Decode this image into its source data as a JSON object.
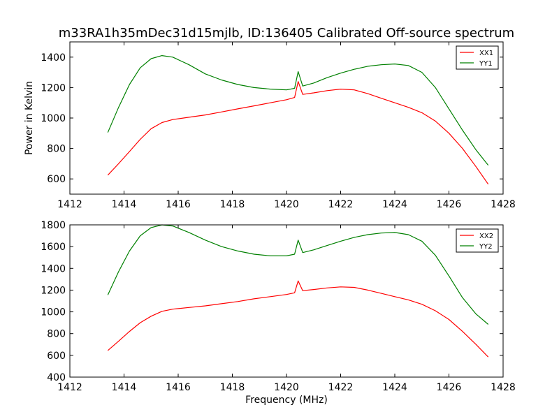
{
  "chart_data": [
    {
      "type": "line",
      "title": "m33RA1h35mDec31d15mjlb, ID:136405 Calibrated Off-source spectrum",
      "xlabel": "",
      "ylabel": "Power in Kelvin",
      "xlim": [
        1412,
        1428
      ],
      "ylim": [
        500,
        1500
      ],
      "xticks": [
        1412,
        1414,
        1416,
        1418,
        1420,
        1422,
        1424,
        1426,
        1428
      ],
      "yticks": [
        600,
        800,
        1000,
        1200,
        1400
      ],
      "legend": "top-right",
      "series": [
        {
          "name": "XX1",
          "color": "#ff0000",
          "x": [
            1413.4,
            1413.8,
            1414.2,
            1414.6,
            1415.0,
            1415.4,
            1415.8,
            1416.4,
            1417.0,
            1417.6,
            1418.2,
            1418.8,
            1419.4,
            1420.0,
            1420.3,
            1420.43,
            1420.6,
            1421.0,
            1421.5,
            1422.0,
            1422.5,
            1423.0,
            1423.5,
            1424.0,
            1424.5,
            1425.0,
            1425.5,
            1426.0,
            1426.5,
            1427.0,
            1427.45
          ],
          "y": [
            625,
            700,
            780,
            860,
            930,
            970,
            990,
            1005,
            1020,
            1040,
            1060,
            1080,
            1100,
            1120,
            1135,
            1240,
            1155,
            1165,
            1180,
            1190,
            1185,
            1160,
            1130,
            1100,
            1070,
            1035,
            980,
            900,
            800,
            680,
            565
          ]
        },
        {
          "name": "YY1",
          "color": "#008000",
          "x": [
            1413.4,
            1413.8,
            1414.2,
            1414.6,
            1415.0,
            1415.4,
            1415.8,
            1416.4,
            1417.0,
            1417.6,
            1418.2,
            1418.8,
            1419.4,
            1420.0,
            1420.3,
            1420.43,
            1420.6,
            1421.0,
            1421.5,
            1422.0,
            1422.5,
            1423.0,
            1423.5,
            1424.0,
            1424.5,
            1425.0,
            1425.5,
            1426.0,
            1426.5,
            1427.0,
            1427.45
          ],
          "y": [
            905,
            1070,
            1220,
            1330,
            1390,
            1410,
            1400,
            1350,
            1290,
            1250,
            1220,
            1200,
            1190,
            1185,
            1195,
            1305,
            1210,
            1230,
            1265,
            1295,
            1320,
            1340,
            1350,
            1355,
            1345,
            1300,
            1200,
            1060,
            920,
            790,
            690
          ]
        }
      ]
    },
    {
      "type": "line",
      "title": "",
      "xlabel": "Frequency (MHz)",
      "ylabel": "",
      "xlim": [
        1412,
        1428
      ],
      "ylim": [
        400,
        1800
      ],
      "xticks": [
        1412,
        1414,
        1416,
        1418,
        1420,
        1422,
        1424,
        1426,
        1428
      ],
      "yticks": [
        400,
        600,
        800,
        1000,
        1200,
        1400,
        1600,
        1800
      ],
      "legend": "top-right",
      "series": [
        {
          "name": "XX2",
          "color": "#ff0000",
          "x": [
            1413.4,
            1413.8,
            1414.2,
            1414.6,
            1415.0,
            1415.4,
            1415.8,
            1416.4,
            1417.0,
            1417.6,
            1418.2,
            1418.8,
            1419.4,
            1420.0,
            1420.3,
            1420.43,
            1420.6,
            1421.0,
            1421.5,
            1422.0,
            1422.5,
            1423.0,
            1423.5,
            1424.0,
            1424.5,
            1425.0,
            1425.5,
            1426.0,
            1426.5,
            1427.0,
            1427.45
          ],
          "y": [
            645,
            730,
            820,
            900,
            960,
            1005,
            1025,
            1040,
            1055,
            1075,
            1095,
            1120,
            1140,
            1160,
            1175,
            1285,
            1195,
            1205,
            1220,
            1230,
            1225,
            1200,
            1170,
            1140,
            1110,
            1070,
            1010,
            930,
            820,
            700,
            585
          ]
        },
        {
          "name": "YY2",
          "color": "#008000",
          "x": [
            1413.4,
            1413.8,
            1414.2,
            1414.6,
            1415.0,
            1415.4,
            1415.8,
            1416.4,
            1417.0,
            1417.6,
            1418.2,
            1418.8,
            1419.4,
            1420.0,
            1420.3,
            1420.43,
            1420.6,
            1421.0,
            1421.5,
            1422.0,
            1422.5,
            1423.0,
            1423.5,
            1424.0,
            1424.5,
            1425.0,
            1425.5,
            1426.0,
            1426.5,
            1427.0,
            1427.45
          ],
          "y": [
            1155,
            1370,
            1560,
            1700,
            1775,
            1800,
            1790,
            1730,
            1660,
            1600,
            1560,
            1530,
            1515,
            1515,
            1530,
            1660,
            1545,
            1570,
            1610,
            1650,
            1685,
            1710,
            1725,
            1730,
            1710,
            1650,
            1520,
            1330,
            1130,
            980,
            885
          ]
        }
      ]
    }
  ]
}
